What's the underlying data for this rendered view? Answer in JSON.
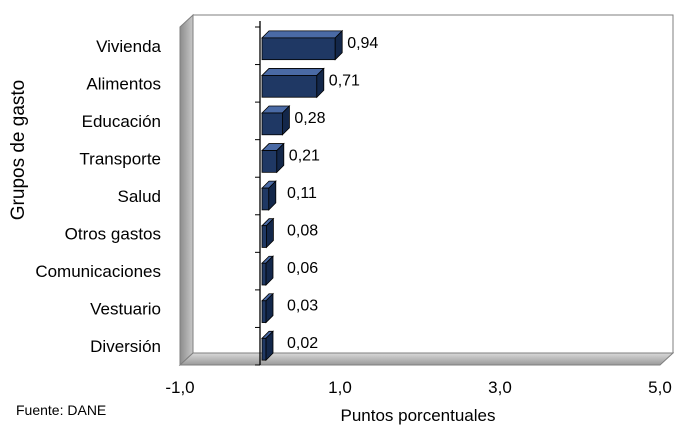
{
  "chart_data": {
    "type": "bar",
    "orientation": "horizontal",
    "three_d": true,
    "categories": [
      "Vivienda",
      "Alimentos",
      "Educación",
      "Transporte",
      "Salud",
      "Otros gastos",
      "Comunicaciones",
      "Vestuario",
      "Diversión"
    ],
    "values": [
      0.94,
      0.71,
      0.28,
      0.21,
      0.11,
      0.08,
      0.06,
      0.03,
      0.02
    ],
    "value_labels": [
      "0,94",
      "0,71",
      "0,28",
      "0,21",
      "0,11",
      "0,08",
      "0,06",
      "0,03",
      "0,02"
    ],
    "xlabel": "Puntos porcentuales",
    "ylabel": "Grupos de gasto",
    "xlim": [
      -1.0,
      5.0
    ],
    "xticks": [
      -1,
      1,
      3,
      5
    ],
    "xtick_labels": [
      "-1,0",
      "1,0",
      "3,0",
      "5,0"
    ],
    "grid": false,
    "legend": "none",
    "bar_color": "#1f3864",
    "wall_color": "#a6a6a6"
  },
  "source_note": "Fuente: DANE"
}
